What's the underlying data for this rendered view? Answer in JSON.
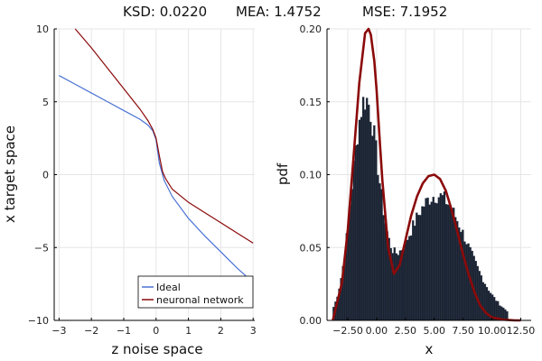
{
  "figure": {
    "title_parts": [
      "KSD: 0.0220",
      "MEA: 1.4752",
      "MSE: 7.1952"
    ]
  },
  "chart_data": [
    {
      "type": "line",
      "xlabel": "z noise space",
      "ylabel": "x target space",
      "xlim": [
        -3.15,
        3.05
      ],
      "ylim": [
        -10,
        10
      ],
      "xticks": [
        -3,
        -2,
        -1,
        0,
        1,
        2,
        3
      ],
      "xtick_labels": [
        "−3",
        "−2",
        "−1",
        "0",
        "1",
        "2",
        "3"
      ],
      "yticks": [
        -10,
        -5,
        0,
        5,
        10
      ],
      "ytick_labels": [
        "−10",
        "−5",
        "0",
        "5",
        "10"
      ],
      "grid": true,
      "legend_position": "bottom-right",
      "series": [
        {
          "name": "Ideal",
          "color": "#4a72d4",
          "x": [
            -3.0,
            -2.5,
            -2.0,
            -1.5,
            -1.0,
            -0.5,
            -0.25,
            -0.1,
            0.0,
            0.1,
            0.25,
            0.5,
            1.0,
            1.5,
            2.0,
            2.5,
            3.0
          ],
          "y": [
            6.8,
            6.2,
            5.6,
            5.0,
            4.4,
            3.8,
            3.4,
            3.0,
            2.4,
            0.8,
            -0.4,
            -1.5,
            -3.0,
            -4.2,
            -5.3,
            -6.4,
            -7.4
          ]
        },
        {
          "name": "neuronal network",
          "color": "#8b0a0a",
          "x": [
            -2.5,
            -2.0,
            -1.5,
            -1.0,
            -0.5,
            -0.25,
            -0.1,
            0.0,
            0.1,
            0.2,
            0.3,
            0.5,
            1.0,
            1.5,
            2.0,
            2.5,
            3.0
          ],
          "y": [
            10.0,
            8.7,
            7.3,
            5.9,
            4.5,
            3.7,
            3.1,
            2.5,
            1.3,
            0.2,
            -0.3,
            -1.0,
            -1.9,
            -2.6,
            -3.3,
            -4.0,
            -4.7
          ]
        }
      ]
    },
    {
      "type": "bar",
      "xlabel": "x",
      "ylabel": "pdf",
      "xlim": [
        -4.3,
        13.4
      ],
      "ylim": [
        0,
        0.2
      ],
      "xticks": [
        -2.5,
        0.0,
        2.5,
        5.0,
        7.5,
        10.0,
        12.5
      ],
      "xtick_labels": [
        "−2.50",
        "0.00",
        "2.50",
        "5.00",
        "7.50",
        "10.00",
        "12.50"
      ],
      "yticks": [
        0.0,
        0.05,
        0.1,
        0.15,
        0.2
      ],
      "ytick_labels": [
        "0.00",
        "0.05",
        "0.10",
        "0.15",
        "0.20"
      ],
      "grid": true,
      "histogram": {
        "color": "#1a2230",
        "bin_width": 0.16,
        "range": [
          -3.8,
          11.4
        ],
        "mix": [
          {
            "weight": 0.42,
            "mean": -1.0,
            "sd": 1.15
          },
          {
            "weight": 0.58,
            "mean": 5.2,
            "sd": 2.7
          }
        ]
      },
      "pdf_curve": {
        "color": "#8b0a0a",
        "x": [
          -3.8,
          -3.0,
          -2.5,
          -2.0,
          -1.5,
          -1.0,
          -0.7,
          -0.5,
          -0.2,
          0.0,
          0.3,
          0.5,
          1.0,
          1.5,
          2.0,
          2.5,
          3.0,
          3.5,
          4.0,
          4.5,
          5.0,
          5.5,
          6.0,
          6.5,
          7.0,
          7.5,
          8.0,
          8.5,
          9.0,
          9.5,
          10.0,
          11.0,
          12.0,
          12.5
        ],
        "y": [
          0.0,
          0.026,
          0.062,
          0.112,
          0.163,
          0.197,
          0.2,
          0.196,
          0.178,
          0.158,
          0.12,
          0.096,
          0.05,
          0.032,
          0.038,
          0.055,
          0.072,
          0.085,
          0.094,
          0.099,
          0.1,
          0.097,
          0.089,
          0.076,
          0.061,
          0.045,
          0.031,
          0.019,
          0.01,
          0.005,
          0.002,
          0.0005,
          0.0,
          0.0
        ]
      }
    }
  ]
}
